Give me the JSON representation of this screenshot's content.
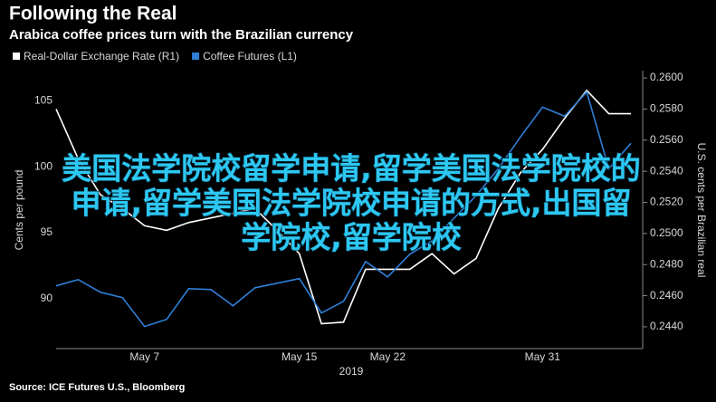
{
  "chart_data": {
    "type": "line",
    "title": "Following the Real",
    "subtitle": "Arabica coffee prices turn with the Brazilian currency",
    "source": "Source: ICE Futures U.S., Bloomberg",
    "xlabel": "2019",
    "ylabel": "Cents per pound",
    "y2label": "U.S. cents per Brazilian real",
    "overlay_text": [
      "美国法学院校留学申请,留学美国法学院校的",
      "申请,留学美国法学院校申请的方式,出国留",
      "学院校,留学院校"
    ],
    "categories": [
      null,
      null,
      null,
      null,
      "May 7",
      null,
      null,
      null,
      null,
      null,
      null,
      "May 15",
      null,
      null,
      null,
      "May 22",
      null,
      null,
      null,
      null,
      null,
      null,
      "May 31",
      null,
      null,
      null,
      null
    ],
    "series": [
      {
        "name": "Real-Dollar Exchange Rate (R1)",
        "color": "#ffffff",
        "axis": "y2",
        "values": [
          0.258,
          0.2548,
          0.2525,
          0.2516,
          0.2505,
          0.2502,
          0.2507,
          0.251,
          0.2513,
          0.2516,
          0.2502,
          0.2487,
          0.2442,
          0.2443,
          0.2477,
          0.2477,
          0.2477,
          0.2487,
          0.2474,
          0.2484,
          0.2516,
          0.2539,
          0.2554,
          0.2574,
          0.2592,
          0.2577,
          0.2577
        ]
      },
      {
        "name": "Coffee Futures (L1)",
        "color": "#2f7fd8",
        "values": [
          90.96,
          91.44,
          90.48,
          90.07,
          87.88,
          88.42,
          90.75,
          90.68,
          89.45,
          90.82,
          91.16,
          91.51,
          88.9,
          89.79,
          92.81,
          91.64,
          93.36,
          94.38,
          96.1,
          97.81,
          99.86,
          102.26,
          104.52,
          103.84,
          105.68,
          99.86,
          101.78
        ]
      }
    ],
    "ylim": [
      86.2,
      107.3
    ],
    "yticks": [
      90,
      95,
      100,
      105
    ],
    "y2lim": [
      0.2426,
      0.26047
    ],
    "y2ticks": [
      {
        "value": 0.244,
        "label": "0.2440"
      },
      {
        "value": 0.246,
        "label": "0.2460"
      },
      {
        "value": 0.248,
        "label": "0.2480"
      },
      {
        "value": 0.25,
        "label": "0.2500"
      },
      {
        "value": 0.252,
        "label": "0.2520"
      },
      {
        "value": 0.254,
        "label": "0.2540"
      },
      {
        "value": 0.256,
        "label": "0.2560"
      },
      {
        "value": 0.258,
        "label": "0.2580"
      },
      {
        "value": 0.26,
        "label": "0.2600"
      }
    ],
    "grid": false,
    "legend": "top-left"
  }
}
